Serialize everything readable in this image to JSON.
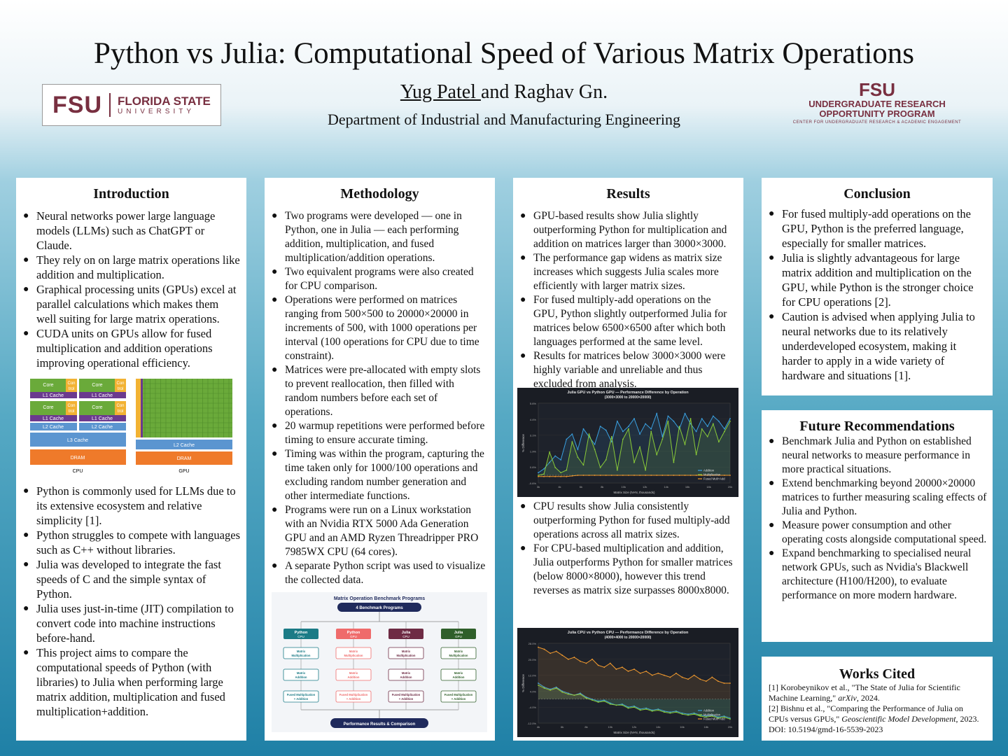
{
  "header": {
    "title": "Python vs Julia: Computational Speed of Various Matrix Operations",
    "author1": "Yug Patel ",
    "author2": "and Raghav Gn.",
    "department": "Department of Industrial and Manufacturing Engineering"
  },
  "logos": {
    "fsu_mark": "FSU",
    "fsu_name": "FLORIDA STATE",
    "fsu_sub": "UNIVERSITY",
    "urop_mark": "FSU",
    "urop_line1": "UNDERGRADUATE RESEARCH",
    "urop_line2": "OPPORTUNITY PROGRAM",
    "urop_line3": "CENTER FOR UNDERGRADUATE RESEARCH & ACADEMIC ENGAGEMENT"
  },
  "intro": {
    "heading": "Introduction",
    "bullets_a": [
      "Neural networks power large language models (LLMs) such as ChatGPT or Claude.",
      "They rely on on large matrix operations like addition and multiplication.",
      "Graphical processing units (GPUs) excel at parallel calculations which makes them well suiting for large matrix operations.",
      "CUDA units on GPUs allow for fused multiplication and addition operations improving operational efficiency."
    ],
    "bullets_b": [
      "Python is commonly used for LLMs due to its extensive ecosystem and relative simplicity [1].",
      "Python struggles to compete with languages such as C++ without libraries.",
      "Julia was developed to integrate the fast speeds of C and the simple syntax of Python.",
      "Julia uses just-in-time (JIT) compilation to convert code into machine instructions before-hand.",
      "This project aims to compare the computational speeds of Python (with libraries) to Julia when performing large matrix addition, multiplication and fused multiplication+addition."
    ],
    "diagram": {
      "core": "Core",
      "ctrl1": "Con",
      "ctrl2": "trol",
      "l1": "L1 Cache",
      "l2": "L2 Cache",
      "l3": "L3 Cache",
      "dram": "DRAM",
      "cpu": "CPU",
      "gpu": "GPU",
      "colors": {
        "core": "#6aaa3a",
        "ctrl": "#f2b233",
        "l1": "#6b3a8e",
        "l2": "#5b95d0",
        "dram": "#ef7a2a"
      }
    }
  },
  "methodology": {
    "heading": "Methodology",
    "bullets": [
      "Two programs were developed — one in Python, one in Julia — each performing addition, multiplication, and fused multiplication/addition operations.",
      "Two equivalent programs were also created for CPU comparison.",
      "Operations were performed on matrices ranging from 500×500 to 20000×20000 in increments of 500, with 1000 operations per interval (100 operations for CPU due to time constraint).",
      "Matrices were pre-allocated with empty slots to prevent reallocation, then filled with random numbers before each set of operations.",
      "20 warmup repetitions were performed before timing to ensure accurate timing.",
      "Timing was within the program, capturing the time taken only for 1000/100 operations and excluding random number generation and other intermediate functions.",
      "Programs were run on a Linux workstation with an Nvidia RTX 5000 Ada Generation GPU and an AMD Ryzen Threadripper PRO 7985WX CPU (64 cores).",
      "A separate Python script was used to visualize the collected data."
    ],
    "flow": {
      "title": "Matrix Operation Benchmark Programs",
      "top": "4 Benchmark Programs",
      "bottom": "Performance Results & Comparison",
      "columns": [
        {
          "name": "Python",
          "sub": "CPU",
          "color": "#1b7b86"
        },
        {
          "name": "Python",
          "sub": "GPU",
          "color": "#ef6b6b"
        },
        {
          "name": "Julia",
          "sub": "CPU",
          "color": "#6e2b44"
        },
        {
          "name": "Julia",
          "sub": "GPU",
          "color": "#2f5f2a"
        }
      ],
      "step1": "Matrix",
      "step1b": "Multiplication",
      "step2": "Matrix",
      "step2b": "Addition",
      "step3": "Fused Multiplication",
      "step3b": "+ Addition"
    }
  },
  "results": {
    "heading": "Results",
    "bullets_a": [
      "GPU-based results show Julia slightly outperforming Python for multiplication and addition on matrices larger than 3000×3000.",
      "The performance gap widens as matrix size increases which suggests Julia scales more efficiently with larger matrix sizes.",
      "For fused multiply-add operations on the GPU, Python slightly outperformed Julia for matrices below 6500×6500 after which both languages performed at the same level.",
      "Results for matrices below 3000×3000 were highly variable and unreliable and thus excluded from analysis."
    ],
    "bullets_b": [
      "CPU results show Julia consistently outperforming Python for fused multiply-add operations across all matrix sizes.",
      "For CPU-based multiplication and addition, Julia outperforms Python for smaller matrices (below 8000×8000), however this trend reverses as matrix size surpasses 8000x8000."
    ]
  },
  "conclusion": {
    "heading": "Conclusion",
    "bullets": [
      "For fused multiply-add operations on the GPU, Python is the preferred language, especially for smaller matrices.",
      "Julia is slightly advantageous for large matrix addition and multiplication on the GPU, while Python is the stronger choice for CPU operations [2].",
      "Caution is advised when applying Julia to neural networks due to its relatively underdeveloped ecosystem, making it harder to apply in a wide variety of hardware and situations [1]."
    ]
  },
  "future": {
    "heading": "Future Recommendations",
    "bullets": [
      "Benchmark Julia and Python on established neural networks to measure performance in more practical situations.",
      "Extend benchmarking beyond 20000×20000 matrices to further measuring scaling effects of Julia and Python.",
      "Measure power consumption and other operating costs alongside computational speed.",
      "Expand benchmarking to specialised neural network GPUs, such as Nvidia's Blackwell architecture (H100/H200), to evaluate performance on more modern hardware."
    ]
  },
  "works_cited": {
    "heading": "Works Cited",
    "ref1_a": "[1] Korobeynikov et al., \"The State of Julia for Scientific Machine Learning,\" ",
    "ref1_journal": "arXiv",
    "ref1_b": ", 2024.",
    "ref2_a": "[2] Bishnu et al., \"Comparing the Performance of Julia on CPUs versus GPUs,\" ",
    "ref2_journal": "Geoscientific Model Development",
    "ref2_b": ", 2023. DOI: 10.5194/gmd-16-5539-2023"
  },
  "chart_data": [
    {
      "type": "line",
      "title": "Julia GPU vs Python GPU — Performance Difference by Operation",
      "subtitle": "(3000×3000 to 20000×20000)",
      "xlabel": "Matrix Size (N×N, thousands)",
      "ylabel": "% Difference",
      "legend_position": "bottom-right",
      "x": [
        3,
        3.5,
        4,
        4.5,
        5,
        5.5,
        6,
        6.5,
        7,
        7.5,
        8,
        8.5,
        9,
        9.5,
        10,
        10.5,
        11,
        11.5,
        12,
        12.5,
        13,
        13.5,
        14,
        14.5,
        15,
        15.5,
        16,
        16.5,
        17,
        17.5,
        18,
        18.5,
        19,
        19.5,
        20
      ],
      "xticks": [
        "3k",
        "4k",
        "6k",
        "8k",
        "10k",
        "12k",
        "14k",
        "16k",
        "18k",
        "20k"
      ],
      "series": [
        {
          "name": "Addition",
          "color": "#3aa0e0",
          "values": [
            0.2,
            0.5,
            1.0,
            1.5,
            1.2,
            2.8,
            3.2,
            2.0,
            3.6,
            3.0,
            2.4,
            3.8,
            3.5,
            2.6,
            4.2,
            3.4,
            3.8,
            4.4,
            3.2,
            4.0,
            3.6,
            4.8,
            3.0,
            4.6,
            4.2,
            3.6,
            4.8,
            4.0,
            3.4,
            4.4,
            3.8,
            4.6,
            4.2,
            3.6,
            4.4
          ]
        },
        {
          "name": "Multiplication",
          "color": "#8acb38",
          "values": [
            0.0,
            0.1,
            1.8,
            0.6,
            0.2,
            0.4,
            2.6,
            1.4,
            0.8,
            3.2,
            2.0,
            0.6,
            1.2,
            3.0,
            0.4,
            2.8,
            3.6,
            1.0,
            2.2,
            0.4,
            3.4,
            1.6,
            2.8,
            4.2,
            1.0,
            3.8,
            2.4,
            4.4,
            1.6,
            3.6,
            3.0,
            4.0,
            2.6,
            3.4,
            4.2
          ]
        },
        {
          "name": "Fused Mult+Add",
          "color": "#f29a2e",
          "values": [
            -0.1,
            -0.1,
            -0.1,
            -0.1,
            -0.1,
            -0.1,
            -0.05,
            0.0,
            0.0,
            0.0,
            0.0,
            0.0,
            0.0,
            0.0,
            0.0,
            0.0,
            0.0,
            0.0,
            0.0,
            0.0,
            0.0,
            0.0,
            0.0,
            0.0,
            0.0,
            0.0,
            0.0,
            0.0,
            0.0,
            0.0,
            0.0,
            0.0,
            0.0,
            0.0,
            0.0
          ]
        }
      ],
      "ylim": [
        -0.6,
        5.6
      ]
    },
    {
      "type": "line",
      "title": "Julia CPU vs Python CPU — Performance Difference by Operation",
      "subtitle": "(4000×4000 to 20000×20000)",
      "xlabel": "Matrix Size (N×N, thousands)",
      "ylabel": "% Difference",
      "legend_position": "bottom-right",
      "x": [
        4,
        4.5,
        5,
        5.5,
        6,
        6.5,
        7,
        7.5,
        8,
        8.5,
        9,
        9.5,
        10,
        10.5,
        11,
        11.5,
        12,
        12.5,
        13,
        13.5,
        14,
        14.5,
        15,
        15.5,
        16,
        16.5,
        17,
        17.5,
        18,
        18.5,
        19,
        19.5,
        20
      ],
      "xticks": [
        "4k",
        "6k",
        "8k",
        "10k",
        "12k",
        "14k",
        "16k",
        "18k",
        "20k"
      ],
      "series": [
        {
          "name": "Addition",
          "color": "#3aa0e0",
          "values": [
            8,
            6,
            5,
            6,
            4,
            3,
            2,
            3,
            1,
            0,
            -1,
            -0.5,
            -2,
            -3,
            -2.5,
            -4,
            -3.5,
            -5,
            -4.5,
            -5.5,
            -5,
            -6,
            -6.5,
            -6,
            -7,
            -7.5,
            -7,
            -8,
            -8.5,
            -8,
            -9,
            -8.5,
            -9.5
          ]
        },
        {
          "name": "Multiplication",
          "color": "#8acb38",
          "values": [
            7,
            5.5,
            4.5,
            5.5,
            3.5,
            2.5,
            2,
            2.5,
            0.5,
            -0.5,
            -1.5,
            -1,
            -2.5,
            -3,
            -3,
            -4.5,
            -4,
            -5.5,
            -5,
            -6,
            -5.5,
            -6.5,
            -7,
            -6.5,
            -7.5,
            -8,
            -7.5,
            -8.5,
            -9,
            -8.5,
            -9.5,
            -9,
            -10
          ]
        },
        {
          "name": "Fused Mult+Add",
          "color": "#f29a2e",
          "values": [
            26,
            25,
            23,
            24,
            22,
            20,
            21,
            19,
            18,
            20,
            17,
            16,
            18,
            15,
            16,
            14,
            15,
            13,
            14,
            12,
            13,
            12,
            11,
            13,
            11,
            10,
            12,
            10,
            9,
            11,
            9,
            8,
            8
          ]
        }
      ],
      "ylim": [
        -12,
        28
      ]
    }
  ]
}
